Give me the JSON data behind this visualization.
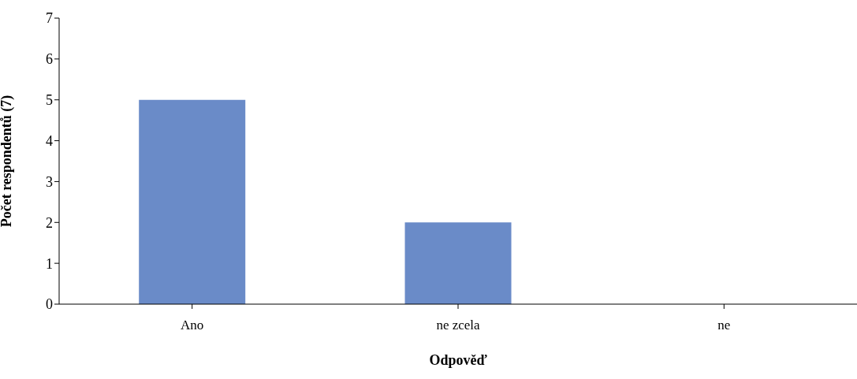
{
  "chart_data": {
    "type": "bar",
    "xlabel": "Odpověď",
    "ylabel": "Počet respondentů (7)",
    "categories": [
      "Ano",
      "ne zcela",
      "ne"
    ],
    "values": [
      5,
      2,
      0
    ],
    "color": "#6a8bc8",
    "ylim": [
      0,
      7
    ],
    "yticks": [
      0,
      1,
      2,
      3,
      4,
      5,
      6,
      7
    ],
    "grid": false,
    "legend": false
  }
}
